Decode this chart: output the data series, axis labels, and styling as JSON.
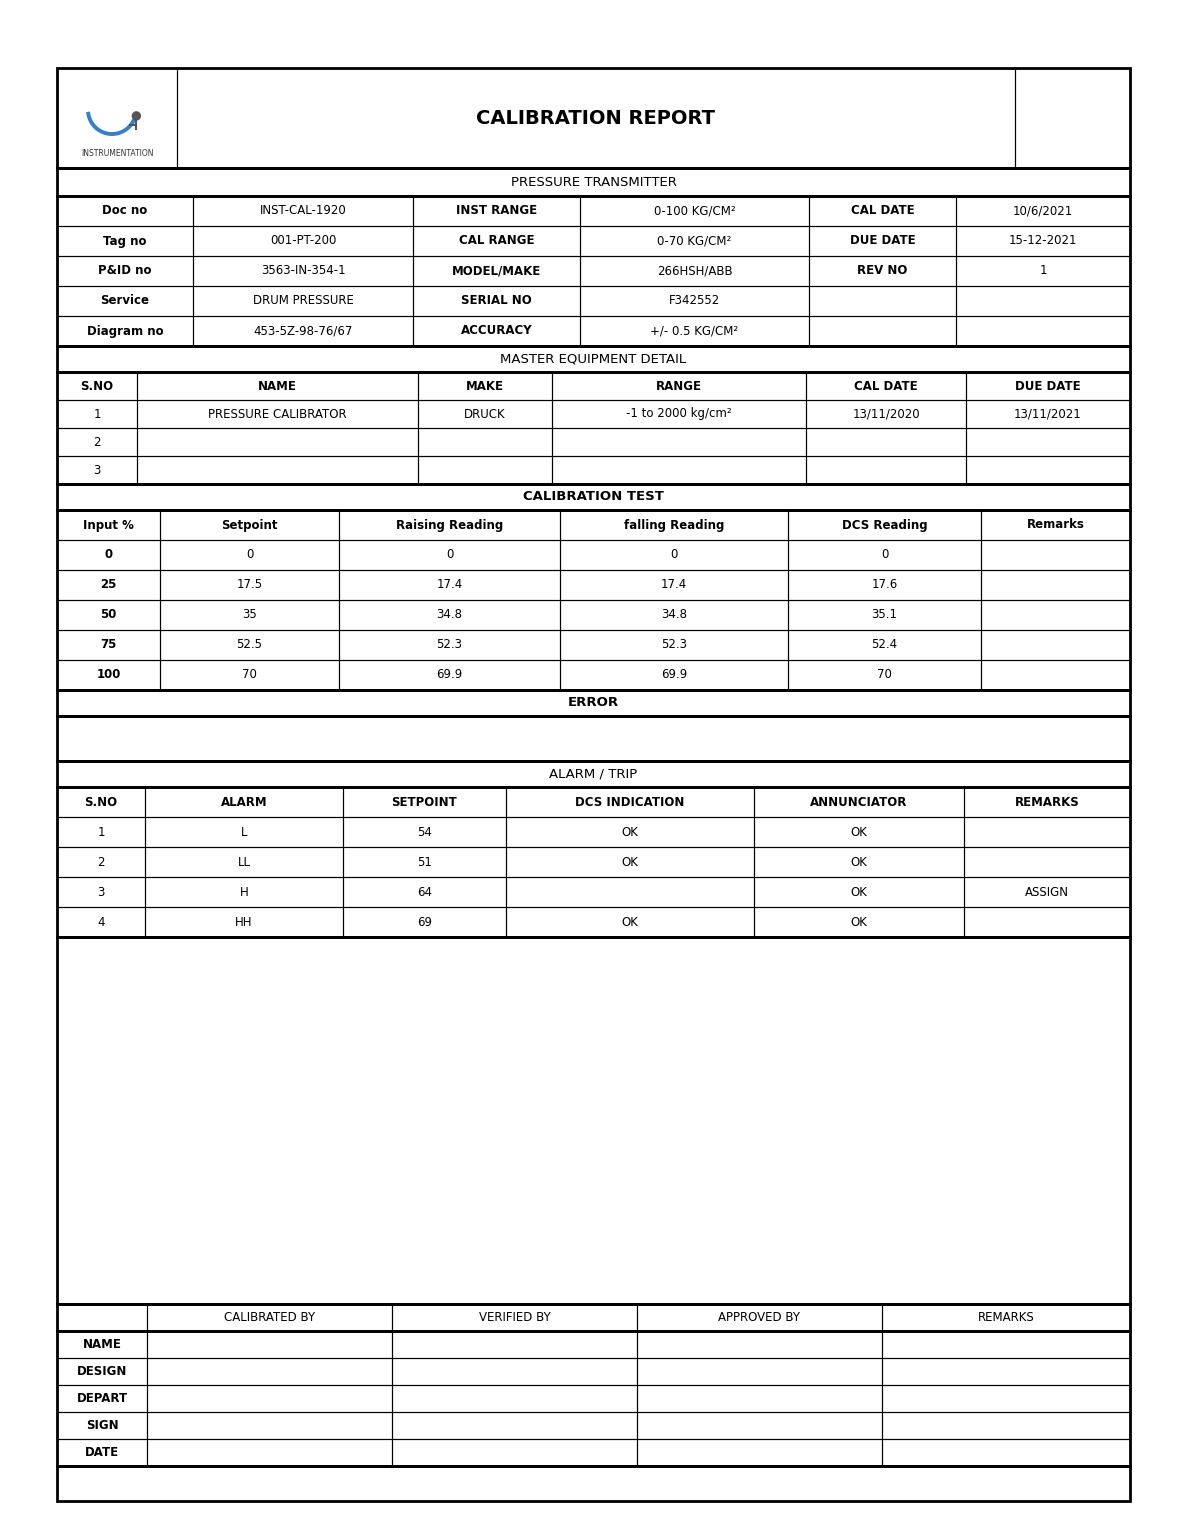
{
  "title": "CALIBRATION REPORT",
  "instrument_type": "PRESSURE TRANSMITTER",
  "instrument_info": [
    [
      "Doc no",
      "INST-CAL-1920",
      "INST RANGE",
      "0-100 KG/CM²",
      "CAL DATE",
      "10/6/2021"
    ],
    [
      "Tag no",
      "001-PT-200",
      "CAL RANGE",
      "0-70 KG/CM²",
      "DUE DATE",
      "15-12-2021"
    ],
    [
      "P&ID no",
      "3563-IN-354-1",
      "MODEL/MAKE",
      "266HSH/ABB",
      "REV NO",
      "1"
    ],
    [
      "Service",
      "DRUM PRESSURE",
      "SERIAL NO",
      "F342552",
      "",
      ""
    ],
    [
      "Diagram no",
      "453-5Z-98-76/67",
      "ACCURACY",
      "+/- 0.5 KG/CM²",
      "",
      ""
    ]
  ],
  "master_header": "MASTER EQUIPMENT DETAIL",
  "master_cols": [
    "S.NO",
    "NAME",
    "MAKE",
    "RANGE",
    "CAL DATE",
    "DUE DATE"
  ],
  "master_rows": [
    [
      "1",
      "PRESSURE CALIBRATOR",
      "DRUCK",
      "-1 to 2000 kg/cm²",
      "13/11/2020",
      "13/11/2021"
    ],
    [
      "2",
      "",
      "",
      "",
      "",
      ""
    ],
    [
      "3",
      "",
      "",
      "",
      "",
      ""
    ]
  ],
  "cal_header": "CALIBRATION TEST",
  "cal_cols": [
    "Input %",
    "Setpoint",
    "Raising Reading",
    "falling Reading",
    "DCS Reading",
    "Remarks"
  ],
  "cal_rows": [
    [
      "0",
      "0",
      "0",
      "0",
      "0",
      ""
    ],
    [
      "25",
      "17.5",
      "17.4",
      "17.4",
      "17.6",
      ""
    ],
    [
      "50",
      "35",
      "34.8",
      "34.8",
      "35.1",
      ""
    ],
    [
      "75",
      "52.5",
      "52.3",
      "52.3",
      "52.4",
      ""
    ],
    [
      "100",
      "70",
      "69.9",
      "69.9",
      "70",
      ""
    ]
  ],
  "error_header": "ERROR",
  "alarm_header": "ALARM / TRIP",
  "alarm_cols": [
    "S.NO",
    "ALARM",
    "SETPOINT",
    "DCS INDICATION",
    "ANNUNCIATOR",
    "REMARKS"
  ],
  "alarm_rows": [
    [
      "1",
      "L",
      "54",
      "OK",
      "OK",
      ""
    ],
    [
      "2",
      "LL",
      "51",
      "OK",
      "OK",
      ""
    ],
    [
      "3",
      "H",
      "64",
      "",
      "OK",
      "ASSIGN"
    ],
    [
      "4",
      "HH",
      "69",
      "OK",
      "OK",
      ""
    ]
  ],
  "footer_headers": [
    "",
    "CALIBRATED BY",
    "VERIFIED BY",
    "APPROVED BY",
    "REMARKS"
  ],
  "footer_rows": [
    "NAME",
    "DESIGN",
    "DEPART",
    "SIGN",
    "DATE"
  ],
  "bg_color": "#ffffff",
  "line_color": "#000000"
}
